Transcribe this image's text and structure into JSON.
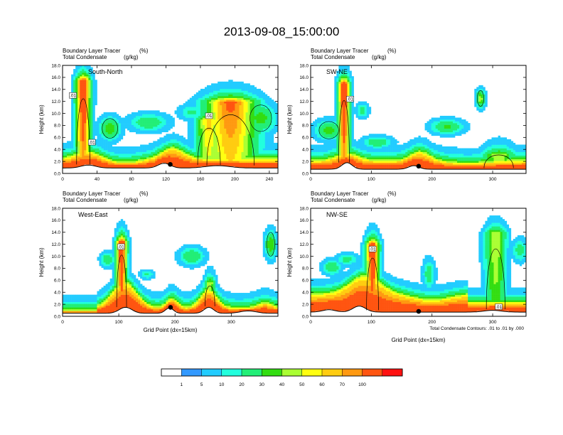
{
  "title": "2013-09-08_15:00:00",
  "panel_left_string_1": "Boundary Layer Tracer",
  "panel_left_unit_1": "(%)",
  "panel_left_string_2": "Total Condensate",
  "panel_left_unit_2": "(g/kg)",
  "y_axis_label": "Height (km)",
  "x_axis_label": "Grid Point (dx=15km)",
  "contour_note": "Total Condensate Contours: .01 to .01 by .000",
  "colorbar": {
    "levels": [
      "1",
      "5",
      "10",
      "20",
      "30",
      "40",
      "50",
      "60",
      "70",
      "100"
    ],
    "colors": [
      "#ffffff",
      "#3399ff",
      "#22ccff",
      "#22ffdd",
      "#22ee77",
      "#33dd11",
      "#aaff33",
      "#ffff11",
      "#ffcc11",
      "#ff9911",
      "#ff5511",
      "#ff1111"
    ]
  },
  "chart_data": [
    {
      "type": "heatmap",
      "panel_name": "South-North",
      "ylabel": "Height (km)",
      "ylim": [
        0,
        18
      ],
      "yticks": [
        "0.0",
        "2.0",
        "4.0",
        "6.0",
        "8.0",
        "10.0",
        "12.0",
        "14.0",
        "16.0",
        "18.0"
      ],
      "xlim": [
        0,
        250
      ],
      "xticks": [
        "0",
        "40",
        "80",
        "120",
        "160",
        "200",
        "240"
      ],
      "contour_labels": [
        ".01",
        ".01",
        ".01"
      ],
      "marker_x": 125
    },
    {
      "type": "heatmap",
      "panel_name": "SW-NE",
      "ylabel": "Height (km)",
      "ylim": [
        0,
        18
      ],
      "yticks": [
        "0.0",
        "2.0",
        "4.0",
        "6.0",
        "8.0",
        "10.0",
        "12.0",
        "14.0",
        "16.0",
        "18.0"
      ],
      "xlim": [
        0,
        355
      ],
      "xticks": [
        "0",
        "100",
        "200",
        "300"
      ],
      "contour_labels": [
        ".01"
      ],
      "marker_x": 178
    },
    {
      "type": "heatmap",
      "panel_name": "West-East",
      "ylabel": "Height (km)",
      "ylim": [
        0,
        18
      ],
      "yticks": [
        "0.0",
        "2.0",
        "4.0",
        "6.0",
        "8.0",
        "10.0",
        "12.0",
        "14.0",
        "16.0",
        "18.0"
      ],
      "xlim": [
        0,
        383
      ],
      "xticks": [
        "0",
        "100",
        "200",
        "300"
      ],
      "contour_labels": [
        ".01"
      ],
      "marker_x": 192
    },
    {
      "type": "heatmap",
      "panel_name": "NW-SE",
      "ylabel": "Height (km)",
      "ylim": [
        0,
        18
      ],
      "yticks": [
        "0.0",
        "2.0",
        "4.0",
        "6.0",
        "8.0",
        "10.0",
        "12.0",
        "14.0",
        "16.0",
        "18.0"
      ],
      "xlim": [
        0,
        355
      ],
      "xticks": [
        "0",
        "100",
        "200",
        "300"
      ],
      "contour_labels": [
        ".01",
        ".01"
      ],
      "marker_x": 178
    }
  ]
}
